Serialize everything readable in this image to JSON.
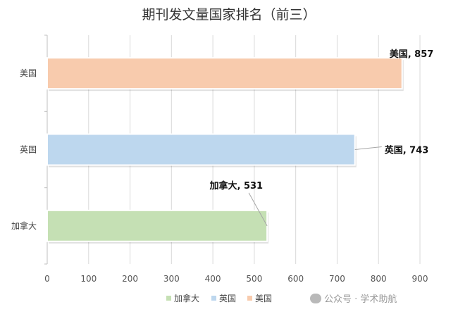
{
  "chart_data": {
    "type": "bar",
    "orientation": "horizontal",
    "title": "期刊发文量国家排名（前三）",
    "categories": [
      "加拿大",
      "英国",
      "美国"
    ],
    "values": [
      531,
      743,
      857
    ],
    "colors": [
      "#c5e0b4",
      "#bdd7ee",
      "#f8cbad"
    ],
    "data_labels": [
      "加拿大, 531",
      "英国, 743",
      "美国, 857"
    ],
    "xlim": [
      0,
      900
    ],
    "xticks": [
      0,
      100,
      200,
      300,
      400,
      500,
      600,
      700,
      800,
      900
    ],
    "grid": true,
    "legend": {
      "position": "bottom",
      "entries": [
        {
          "label": "加拿大",
          "color": "#c5e0b4"
        },
        {
          "label": "英国",
          "color": "#bdd7ee"
        },
        {
          "label": "美国",
          "color": "#f8cbad"
        }
      ]
    }
  },
  "watermark": {
    "text": "公众号 · 学术助航"
  }
}
